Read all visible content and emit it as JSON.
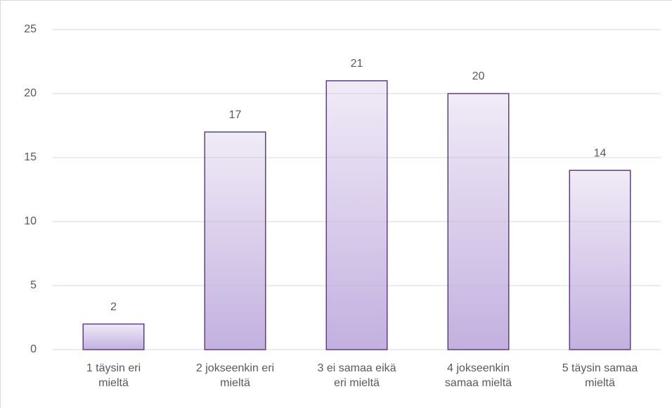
{
  "chart_data": {
    "type": "bar",
    "categories": [
      [
        "1 täysin eri",
        "mieltä"
      ],
      [
        "2 jokseenkin eri",
        "mieltä"
      ],
      [
        "3 ei samaa eikä",
        "eri mieltä"
      ],
      [
        "4 jokseenkin",
        "samaa mieltä"
      ],
      [
        "5 täysin samaa",
        "mieltä"
      ]
    ],
    "values": [
      2,
      17,
      21,
      20,
      14
    ],
    "color": "#c3b0df",
    "edgecolor": "#5e3f80",
    "ylim": [
      0,
      25
    ],
    "yticks": [
      0,
      5,
      10,
      15,
      20,
      25
    ],
    "grid": true
  }
}
